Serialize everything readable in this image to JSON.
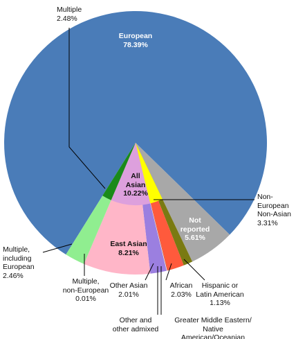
{
  "chart_data": {
    "type": "pie",
    "categories": [
      "European",
      "Not\nreported",
      "Hispanic or\nLatin American",
      "African",
      "Greater Middle Eastern/\nNative American/Oceanian",
      "Other and\nother admixed",
      "Other Asian",
      "East Asian",
      "Multiple,\nnon-European",
      "Multiple,\nincluding\nEuropean"
    ],
    "values": [
      78.39,
      5.61,
      1.13,
      2.03,
      0.08,
      0.07,
      2.01,
      8.21,
      0.01,
      2.46
    ],
    "value_labels": [
      "78.39%",
      "5.61%",
      "1.13%",
      "2.03%",
      null,
      null,
      "2.01%",
      "8.21%",
      "0.01%",
      "2.46%"
    ],
    "colors": [
      "#4a7cb8",
      "#a8a8a8",
      "#7a7a12",
      "#ff5a3c",
      "#d9472b",
      "#f0e8e0",
      "#9b7fe0",
      "#ffb6c8",
      "#7fd37f",
      "#90ee90"
    ],
    "inner": {
      "categories": [
        "Non-\nEuropean\nNon-Asian",
        "All\nAsian",
        "Multiple"
      ],
      "values": [
        3.31,
        10.22,
        2.48
      ],
      "value_labels": [
        "3.31%",
        "10.22%",
        "2.48%"
      ],
      "colors": [
        "#ffff00",
        "#dda0dd",
        "#1a8a1a"
      ]
    }
  }
}
